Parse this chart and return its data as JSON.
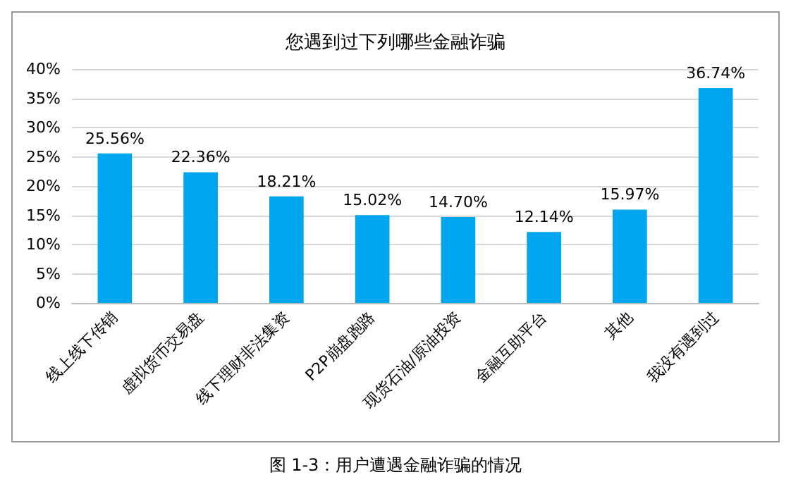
{
  "chart_data": {
    "type": "bar",
    "title": "您遇到过下列哪些金融诈骗",
    "categories": [
      "线上线下传销",
      "虚拟货币交易盘",
      "线下理财非法集资",
      "P2P崩盘跑路",
      "现货石油/原油投资",
      "金融互助平台",
      "其他",
      "我没有遇到过"
    ],
    "values": [
      25.56,
      22.36,
      18.21,
      15.02,
      14.7,
      12.14,
      15.97,
      36.74
    ],
    "value_labels": [
      "25.56%",
      "22.36%",
      "18.21%",
      "15.02%",
      "14.70%",
      "12.14%",
      "15.97%",
      "36.74%"
    ],
    "color": "#00a6ed",
    "ylim": [
      0,
      40
    ],
    "yticks": [
      {
        "value": 0,
        "label": "0%"
      },
      {
        "value": 5,
        "label": "5%"
      },
      {
        "value": 10,
        "label": "10%"
      },
      {
        "value": 15,
        "label": "15%"
      },
      {
        "value": 20,
        "label": "20%"
      },
      {
        "value": 25,
        "label": "25%"
      },
      {
        "value": 30,
        "label": "30%"
      },
      {
        "value": 35,
        "label": "35%"
      },
      {
        "value": 40,
        "label": "40%"
      }
    ],
    "grid": "y",
    "annotations": [
      "图 1-3：用户遭遇金融诈骗的情况"
    ]
  }
}
